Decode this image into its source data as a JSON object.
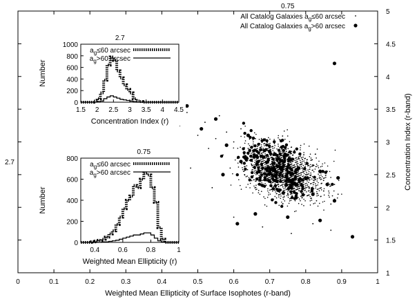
{
  "chart_data": [
    {
      "type": "scatter",
      "xlabel": "Weighted Mean Ellipticity of Surface Isophotes (r-band)",
      "ylabel": "Concentration Index (r-band)",
      "xlim": [
        0,
        1
      ],
      "ylim": [
        1,
        5
      ],
      "x_ticks": [
        "0",
        "0.1",
        "0.2",
        "0.3",
        "0.4",
        "0.5",
        "0.6",
        "0.7",
        "0.8",
        "0.9",
        "1"
      ],
      "y_ticks": [
        "1",
        "1.5",
        "2",
        "2.5",
        "3",
        "3.5",
        "4",
        "4.5",
        "5"
      ],
      "top_label": "0.75",
      "left_label": "2.7",
      "legend_position": "top-right",
      "series": [
        {
          "name_parts": [
            "All Catalog Galaxies a",
            "g",
            "≤60 arcsec"
          ],
          "marker": "small-dot",
          "description": "dense cloud, ellipticity ~0.45–0.9, concentration ~1.5–3.7",
          "points": [
            [
              0.42,
              3.4
            ],
            [
              0.45,
              3.25
            ],
            [
              0.47,
              3.45
            ],
            [
              0.5,
              3.1
            ],
            [
              0.52,
              3.3
            ],
            [
              0.53,
              2.9
            ],
            [
              0.55,
              3.05
            ],
            [
              0.56,
              3.4
            ],
            [
              0.57,
              2.8
            ],
            [
              0.58,
              3.15
            ],
            [
              0.59,
              2.6
            ],
            [
              0.6,
              3.0
            ],
            [
              0.61,
              2.75
            ],
            [
              0.62,
              3.2
            ],
            [
              0.63,
              2.5
            ],
            [
              0.64,
              2.9
            ],
            [
              0.65,
              2.65
            ],
            [
              0.66,
              3.05
            ],
            [
              0.67,
              2.4
            ],
            [
              0.68,
              2.8
            ],
            [
              0.69,
              2.55
            ],
            [
              0.7,
              2.95
            ],
            [
              0.71,
              2.3
            ],
            [
              0.72,
              2.7
            ],
            [
              0.73,
              2.45
            ],
            [
              0.74,
              2.85
            ],
            [
              0.75,
              2.2
            ],
            [
              0.76,
              2.6
            ],
            [
              0.77,
              2.35
            ],
            [
              0.78,
              2.75
            ],
            [
              0.79,
              2.15
            ],
            [
              0.8,
              2.5
            ],
            [
              0.81,
              2.3
            ],
            [
              0.82,
              2.65
            ],
            [
              0.83,
              2.1
            ],
            [
              0.84,
              2.45
            ],
            [
              0.85,
              2.25
            ],
            [
              0.86,
              2.55
            ],
            [
              0.87,
              2.05
            ],
            [
              0.88,
              2.35
            ],
            [
              0.89,
              2.2
            ],
            [
              0.6,
              1.85
            ],
            [
              0.68,
              1.7
            ],
            [
              0.76,
              1.6
            ],
            [
              0.82,
              1.75
            ],
            [
              0.87,
              1.65
            ],
            [
              0.54,
              2.3
            ],
            [
              0.48,
              2.6
            ],
            [
              0.44,
              2.85
            ],
            [
              0.4,
              2.7
            ]
          ]
        },
        {
          "name_parts": [
            "All Catalog Galaxies a",
            "g",
            ">60 arcsec"
          ],
          "marker": "large-dot",
          "description": "same region, fewer points",
          "points": [
            [
              0.47,
              3.55
            ],
            [
              0.51,
              3.2
            ],
            [
              0.55,
              3.35
            ],
            [
              0.58,
              2.95
            ],
            [
              0.62,
              2.7
            ],
            [
              0.64,
              3.1
            ],
            [
              0.67,
              2.55
            ],
            [
              0.7,
              2.85
            ],
            [
              0.72,
              2.4
            ],
            [
              0.74,
              2.7
            ],
            [
              0.76,
              2.3
            ],
            [
              0.78,
              2.6
            ],
            [
              0.8,
              2.45
            ],
            [
              0.82,
              2.2
            ],
            [
              0.84,
              2.55
            ],
            [
              0.86,
              2.35
            ],
            [
              0.88,
              2.1
            ],
            [
              0.89,
              2.45
            ],
            [
              0.57,
              2.5
            ],
            [
              0.66,
              1.9
            ],
            [
              0.75,
              1.85
            ],
            [
              0.84,
              1.8
            ],
            [
              0.61,
              1.75
            ],
            [
              0.93,
              1.55
            ],
            [
              0.88,
              4.2
            ]
          ]
        }
      ]
    },
    {
      "type": "histogram",
      "position": "inset-upper-left",
      "xlabel": "Concentration Index (r)",
      "ylabel": "Number",
      "top_label": "2.7",
      "xlim": [
        1.5,
        4.5
      ],
      "ylim": [
        0,
        1000
      ],
      "x_ticks": [
        "1.5",
        "2",
        "2.5",
        "3",
        "3.5",
        "4",
        "4.5"
      ],
      "y_ticks": [
        "0",
        "200",
        "400",
        "600",
        "800",
        "1000"
      ],
      "bin_width": 0.1,
      "bin_start": 1.5,
      "series": [
        {
          "name_parts": [
            "a",
            "g",
            "≤60 arcsec"
          ],
          "style": "thick-dashed",
          "values": [
            0,
            0,
            0,
            0,
            20,
            60,
            160,
            380,
            640,
            780,
            720,
            540,
            420,
            300,
            220,
            160,
            60,
            20,
            10,
            0,
            0,
            0,
            0,
            0,
            0,
            0,
            0,
            0,
            0,
            0
          ]
        },
        {
          "name_parts": [
            "a",
            "g",
            ">60 arcsec"
          ],
          "style": "solid",
          "values": [
            0,
            0,
            0,
            0,
            0,
            10,
            20,
            60,
            90,
            110,
            90,
            70,
            50,
            40,
            30,
            20,
            10,
            0,
            0,
            0,
            0,
            0,
            0,
            0,
            0,
            0,
            0,
            0,
            0,
            0
          ]
        }
      ]
    },
    {
      "type": "histogram",
      "position": "inset-lower-left",
      "xlabel": "Weighted Mean Ellipticity (r)",
      "ylabel": "Number",
      "top_label": "0.75",
      "xlim": [
        0.3,
        1
      ],
      "ylim": [
        0,
        800
      ],
      "x_ticks": [
        "0.4",
        "0.6",
        "0.8",
        "1"
      ],
      "y_ticks": [
        "0",
        "200",
        "400",
        "600",
        "800"
      ],
      "bin_width": 0.025,
      "bin_start": 0.3,
      "series": [
        {
          "name_parts": [
            "a",
            "g",
            "≤60 arcsec"
          ],
          "style": "thick-dashed",
          "values": [
            0,
            0,
            0,
            5,
            10,
            20,
            30,
            50,
            80,
            110,
            170,
            240,
            320,
            400,
            440,
            540,
            520,
            600,
            660,
            640,
            520,
            380,
            140,
            30,
            0,
            0,
            0,
            0
          ]
        },
        {
          "name_parts": [
            "a",
            "g",
            ">60 arcsec"
          ],
          "style": "solid",
          "values": [
            0,
            0,
            0,
            0,
            0,
            0,
            5,
            5,
            10,
            15,
            20,
            30,
            40,
            50,
            60,
            70,
            70,
            80,
            90,
            90,
            70,
            40,
            15,
            5,
            0,
            0,
            0,
            0
          ]
        }
      ]
    }
  ]
}
